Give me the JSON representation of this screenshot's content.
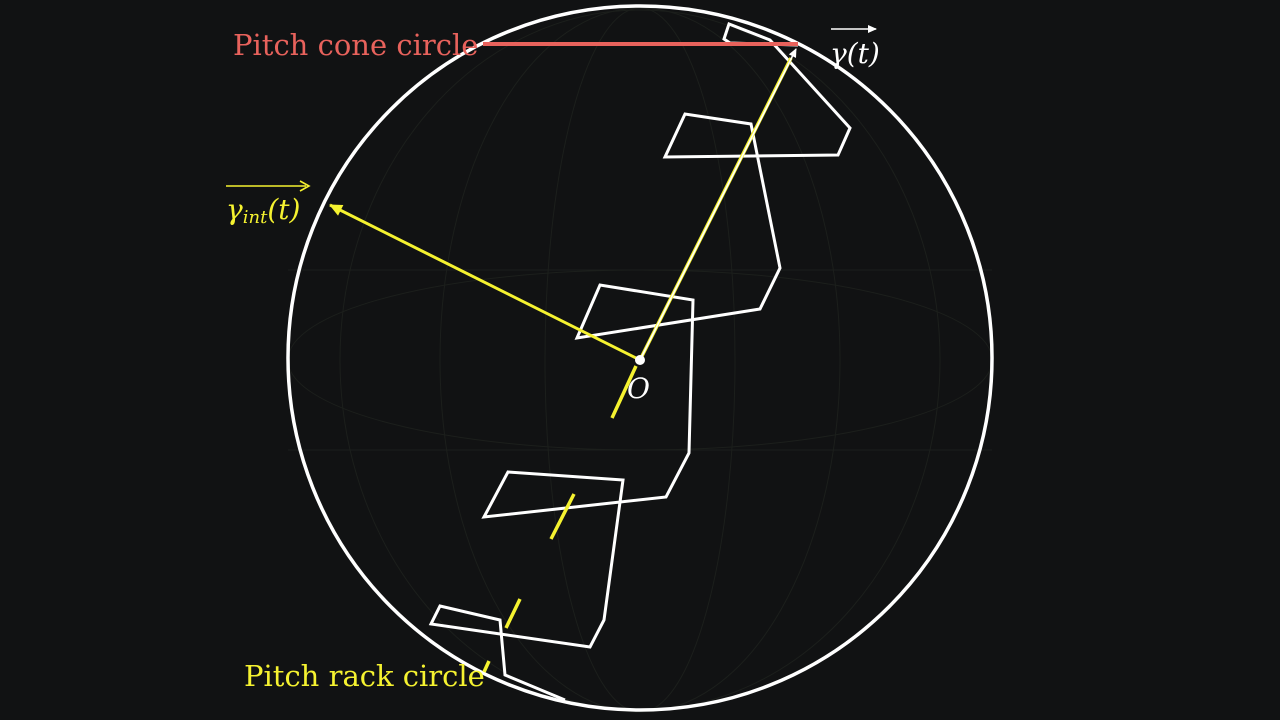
{
  "diagram": {
    "labels": {
      "pitch_cone_circle": "Pitch cone circle",
      "pitch_rack_circle": "Pitch rack circle",
      "origin": "O",
      "gamma_vector": "γ(t)",
      "gamma_int_vector": "γ",
      "gamma_int_subscript": "int",
      "gamma_int_arg": "(t)"
    },
    "colors": {
      "background": "#111213",
      "sphere": "#ffffff",
      "rack_outline": "#ffffff",
      "pitch_cone": "#e8625c",
      "pitch_rack": "#f5f230",
      "gamma_vector": "#ffffff",
      "gamma_int_vector": "#f5f230"
    }
  }
}
